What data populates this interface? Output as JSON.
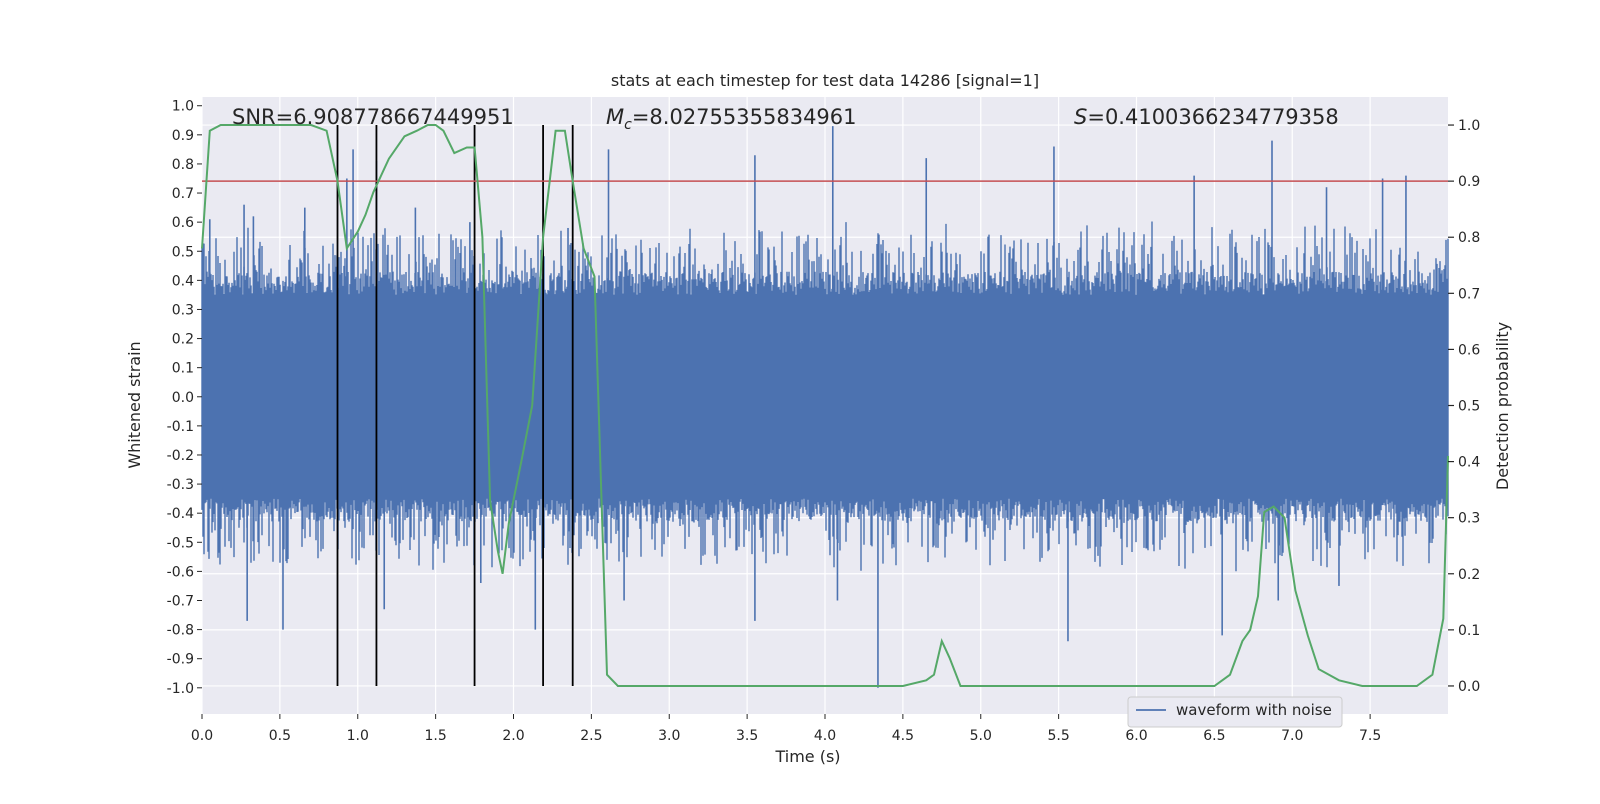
{
  "chart_data": {
    "type": "line",
    "title": "stats at each timestep for test data 14286 [signal=1]",
    "xlabel": "Time (s)",
    "ylabel": "Whitened strain",
    "y2label": "Detection probability",
    "xlim": [
      0.0,
      8.0
    ],
    "ylim": [
      -1.09,
      1.03
    ],
    "y2lim": [
      -0.05,
      1.05
    ],
    "xticks": [
      "0.0",
      "0.5",
      "1.0",
      "1.5",
      "2.0",
      "2.5",
      "3.0",
      "3.5",
      "4.0",
      "4.5",
      "5.0",
      "5.5",
      "6.0",
      "6.5",
      "7.0",
      "7.5"
    ],
    "yticks": [
      "1.0",
      "0.9",
      "0.8",
      "0.7",
      "0.6",
      "0.5",
      "0.4",
      "0.3",
      "0.2",
      "0.1",
      "0.0",
      "-0.1",
      "-0.2",
      "-0.3",
      "-0.4",
      "-0.5",
      "-0.6",
      "-0.7",
      "-0.8",
      "-0.9",
      "-1.0"
    ],
    "y2ticks": [
      "1.0",
      "0.9",
      "0.8",
      "0.7",
      "0.6",
      "0.5",
      "0.4",
      "0.3",
      "0.2",
      "0.1",
      "0.0"
    ],
    "annotations": {
      "snr": "SNR=6.908778667449951",
      "mc_symbol": "M",
      "mc_sub": "c",
      "mc_value": "=8.02755355834961",
      "s_symbol": "S",
      "s_value": "=0.4100366234779358"
    },
    "legend": {
      "label": "waveform with noise",
      "placement": "lower-right"
    },
    "threshold": 0.9,
    "event_markers": [
      0.87,
      1.12,
      1.75,
      2.19,
      2.38
    ],
    "waveform": {
      "name": "waveform with noise",
      "band_upper": 0.35,
      "band_lower": -0.35,
      "spike_max": [
        [
          0.05,
          0.61
        ],
        [
          0.27,
          0.66
        ],
        [
          0.33,
          0.62
        ],
        [
          0.66,
          0.65
        ],
        [
          0.93,
          0.75
        ],
        [
          0.97,
          0.85
        ],
        [
          1.12,
          0.81
        ],
        [
          1.37,
          0.65
        ],
        [
          1.72,
          0.6
        ],
        [
          2.35,
          0.58
        ],
        [
          2.61,
          0.85
        ],
        [
          3.55,
          0.83
        ],
        [
          4.05,
          0.93
        ],
        [
          4.65,
          0.82
        ],
        [
          5.47,
          0.86
        ],
        [
          6.37,
          0.76
        ],
        [
          6.87,
          0.88
        ],
        [
          7.22,
          0.72
        ],
        [
          7.58,
          0.75
        ],
        [
          7.73,
          0.76
        ]
      ],
      "spike_min": [
        [
          0.29,
          -0.77
        ],
        [
          0.52,
          -0.8
        ],
        [
          1.17,
          -0.73
        ],
        [
          1.79,
          -0.64
        ],
        [
          2.14,
          -0.8
        ],
        [
          2.71,
          -0.7
        ],
        [
          3.55,
          -0.77
        ],
        [
          4.08,
          -0.7
        ],
        [
          4.34,
          -1.0
        ],
        [
          5.56,
          -0.84
        ],
        [
          6.55,
          -0.82
        ],
        [
          6.91,
          -0.7
        ],
        [
          7.3,
          -0.65
        ]
      ]
    },
    "detection_probability": {
      "name": "Detection probability",
      "x": [
        0.0,
        0.05,
        0.12,
        0.2,
        0.4,
        0.6,
        0.7,
        0.8,
        0.87,
        0.93,
        1.0,
        1.05,
        1.1,
        1.2,
        1.3,
        1.38,
        1.45,
        1.5,
        1.55,
        1.62,
        1.7,
        1.75,
        1.8,
        1.85,
        1.9,
        1.93,
        1.97,
        2.05,
        2.12,
        2.19,
        2.27,
        2.33,
        2.38,
        2.45,
        2.52,
        2.6,
        2.67,
        2.8,
        3.0,
        3.3,
        3.5,
        3.7,
        3.8,
        3.87,
        3.95,
        4.1,
        4.3,
        4.5,
        4.65,
        4.7,
        4.75,
        4.8,
        4.87,
        4.93,
        5.0,
        5.2,
        5.5,
        5.8,
        6.0,
        6.2,
        6.5,
        6.6,
        6.68,
        6.73,
        6.78,
        6.82,
        6.88,
        6.95,
        7.02,
        7.1,
        7.17,
        7.3,
        7.45,
        7.6,
        7.8,
        7.9,
        7.97,
        8.0
      ],
      "y": [
        0.78,
        0.99,
        1.0,
        1.0,
        1.0,
        1.0,
        1.0,
        0.99,
        0.9,
        0.78,
        0.81,
        0.84,
        0.88,
        0.94,
        0.98,
        0.99,
        1.0,
        1.0,
        0.99,
        0.95,
        0.96,
        0.96,
        0.8,
        0.33,
        0.24,
        0.2,
        0.29,
        0.4,
        0.5,
        0.8,
        0.99,
        0.99,
        0.9,
        0.78,
        0.73,
        0.02,
        0.0,
        0.0,
        0.0,
        0.0,
        0.0,
        0.0,
        0.0,
        0.0,
        0.0,
        0.0,
        0.0,
        0.0,
        0.01,
        0.02,
        0.08,
        0.05,
        0.0,
        0.0,
        0.0,
        0.0,
        0.0,
        0.0,
        0.0,
        0.0,
        0.0,
        0.02,
        0.08,
        0.1,
        0.16,
        0.31,
        0.32,
        0.3,
        0.17,
        0.09,
        0.03,
        0.01,
        0.0,
        0.0,
        0.0,
        0.02,
        0.12,
        0.41
      ]
    },
    "colors": {
      "waveform": "#4c72b0",
      "probability": "#55a868",
      "threshold": "#c44e52",
      "markers": "#000000",
      "axes_bg": "#eaeaf2",
      "grid": "#ffffff"
    }
  }
}
